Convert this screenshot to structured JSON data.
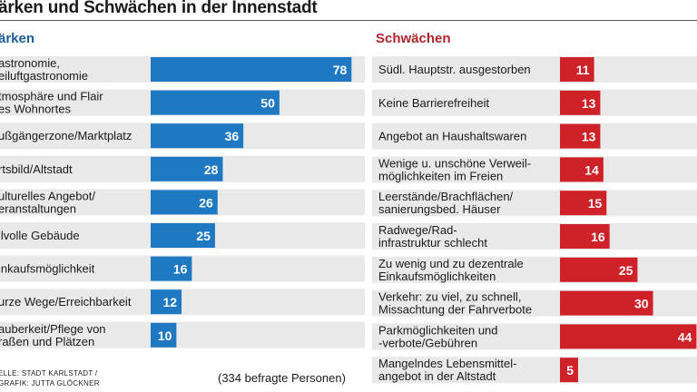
{
  "title": "ärken und Schwächen in der Innenstadt",
  "left_header": "ärken",
  "right_header": "Schwächen",
  "colors": {
    "strengths": "#1e78c2",
    "weaknesses": "#cf2128",
    "row_bg": "#e9e9e9"
  },
  "source_lines": [
    "ELLE: STADT KARLSTADT /",
    "GRAFIK: JUTTA GLÖCKNER"
  ],
  "respondents_note": "(334 befragte Personen)",
  "chart_data": [
    {
      "type": "bar",
      "orientation": "horizontal",
      "name": "Stärken",
      "categories": [
        [
          "astronomie,",
          "eiluftgastronomie"
        ],
        [
          "tmosphäre und Flair",
          "es Wohnortes"
        ],
        [
          "ußgängerzone/Marktplatz"
        ],
        [
          "rtsbild/Altstadt"
        ],
        [
          "ulturelles Angebot/",
          "eranstaltungen"
        ],
        [
          "ilvolle Gebäude"
        ],
        [
          "inkaufsmöglichkeit"
        ],
        [
          "urze Wege/Erreichbarkeit"
        ],
        [
          "auberkeit/Pflege von",
          "raßen und Plätzen"
        ]
      ],
      "values": [
        78,
        50,
        36,
        28,
        26,
        25,
        16,
        12,
        10
      ],
      "xlim": [
        0,
        80
      ]
    },
    {
      "type": "bar",
      "orientation": "horizontal",
      "name": "Schwächen",
      "categories": [
        [
          "Südl. Hauptstr. ausgestorben"
        ],
        [
          "Keine Barrierefreiheit"
        ],
        [
          "Angebot an Haushaltswaren"
        ],
        [
          "Wenige u. unschöne Verweil-",
          "möglichkeiten im Freien"
        ],
        [
          "Leerstände/Brachflächen/",
          "sanierungsbed. Häuser"
        ],
        [
          "Radwege/Rad-",
          "infrastruktur schlecht"
        ],
        [
          "Zu wenig und zu dezentrale",
          "Einkaufsmöglichkeiten"
        ],
        [
          "Verkehr: zu viel, zu schnell,",
          "Missachtung der Fahrverbote"
        ],
        [
          "Parkmöglichkeiten und",
          "-verbote/Gebühren"
        ],
        [
          "Mangelndes Lebensmittel-",
          "angebot in der Altstadt"
        ]
      ],
      "values": [
        11,
        13,
        13,
        14,
        15,
        16,
        25,
        30,
        44,
        5
      ],
      "display_values": [
        "11",
        "13",
        "13",
        "14",
        "15",
        "16",
        "25",
        "30",
        "44",
        "5"
      ],
      "xlim": [
        0,
        55
      ]
    }
  ]
}
